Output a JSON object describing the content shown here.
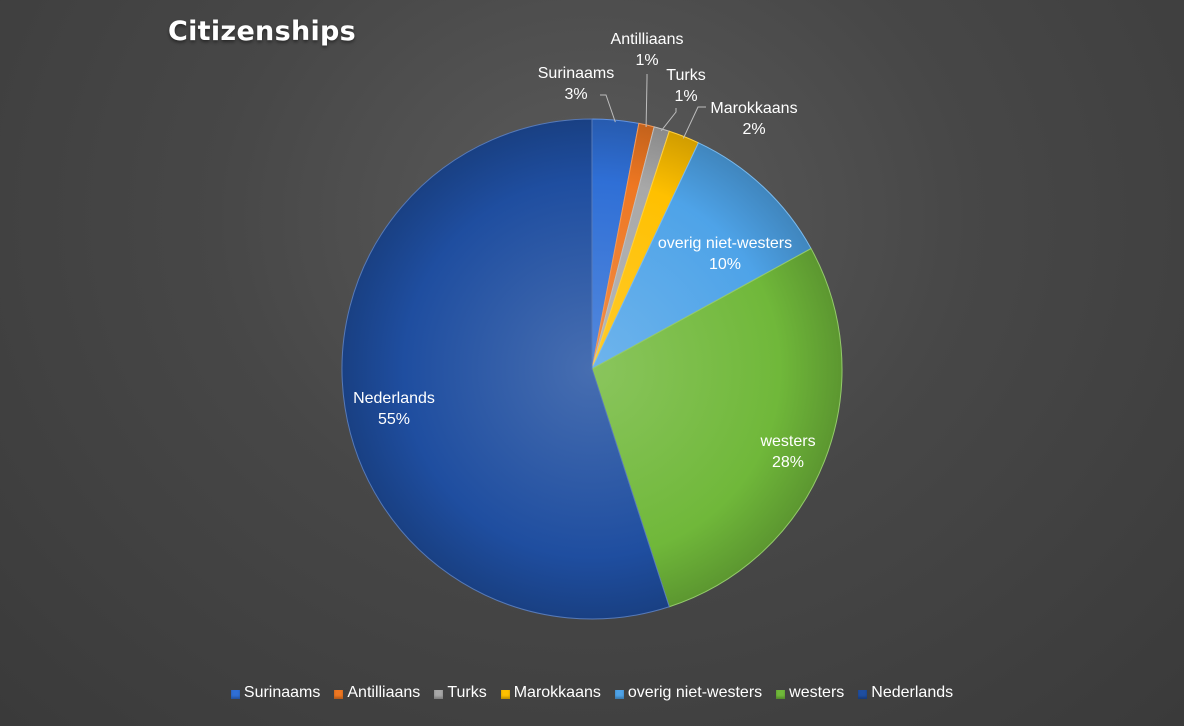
{
  "chart_data": {
    "type": "pie",
    "title": "Citizenships",
    "categories": [
      "Surinaams",
      "Antilliaans",
      "Turks",
      "Marokkaans",
      "overig niet-westers",
      "westers",
      "Nederlands"
    ],
    "values": [
      3,
      1,
      1,
      2,
      10,
      28,
      55
    ],
    "labels": [
      "3%",
      "1%",
      "1%",
      "2%",
      "10%",
      "28%",
      "55%"
    ],
    "colors": [
      "#2f6fd6",
      "#ee7722",
      "#a8a8a8",
      "#ffc000",
      "#4ea3e8",
      "#70b83a",
      "#1f4ea0"
    ],
    "legend_position": "bottom"
  }
}
